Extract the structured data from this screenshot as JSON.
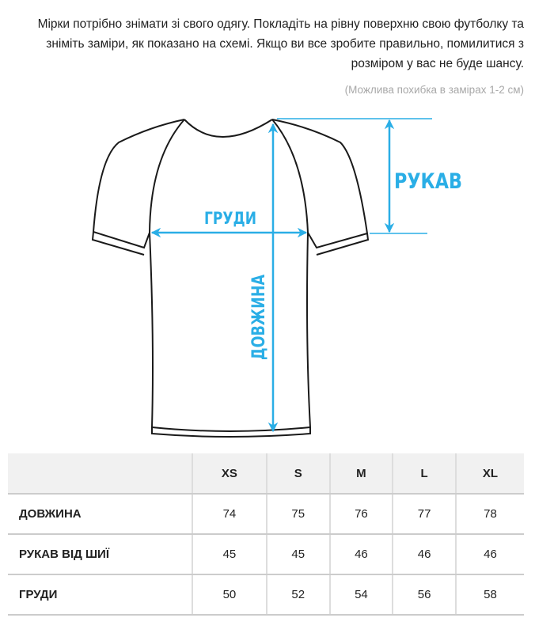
{
  "intro_text": "Мірки потрібно знімати зі свого одягу. Покладіть на рівну поверхню свою футболку та зніміть заміри, як показано на схемі. Якщо ви все зробите правильно, помилитися з розміром у вас не буде шансу.",
  "note": "(Можлива похибка в замірах 1-2 см)",
  "diagram": {
    "sleeve_label": "РУКАВ",
    "chest_label": "ГРУДИ",
    "length_label": "ДОВЖИНА",
    "accent_color": "#2aaee6"
  },
  "table": {
    "headers": [
      "",
      "XS",
      "S",
      "M",
      "L",
      "XL"
    ],
    "rows": [
      {
        "label": "ДОВЖИНА",
        "values": [
          "74",
          "75",
          "76",
          "77",
          "78"
        ]
      },
      {
        "label": "РУКАВ ВІД ШИЇ",
        "values": [
          "45",
          "45",
          "46",
          "46",
          "46"
        ]
      },
      {
        "label": "ГРУДИ",
        "values": [
          "50",
          "52",
          "54",
          "56",
          "58"
        ]
      }
    ]
  }
}
